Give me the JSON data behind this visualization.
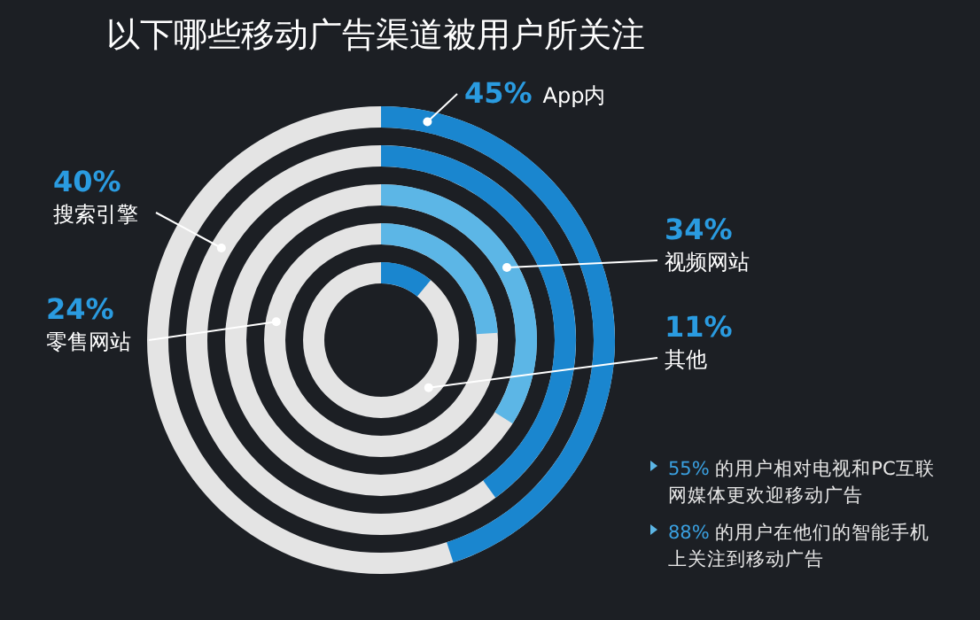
{
  "chart_data": {
    "type": "other",
    "title": "以下哪些移动广告渠道被用户所关注",
    "categories": [
      "App内",
      "搜索引擎",
      "视频网站",
      "零售网站",
      "其他"
    ],
    "values": [
      45,
      40,
      34,
      24,
      11
    ],
    "colors": [
      "#1a86cf",
      "#1a86cf",
      "#5cb6e6",
      "#5cb6e6",
      "#1a86cf"
    ],
    "value_labels": [
      "45%",
      "40%",
      "34%",
      "24%",
      "11%"
    ],
    "annotations": [
      "55% 的用户相对电视和PC互联网媒体更欢迎移动广告",
      "88% 的用户在他们的智能手机上关注到移动广告"
    ]
  }
}
